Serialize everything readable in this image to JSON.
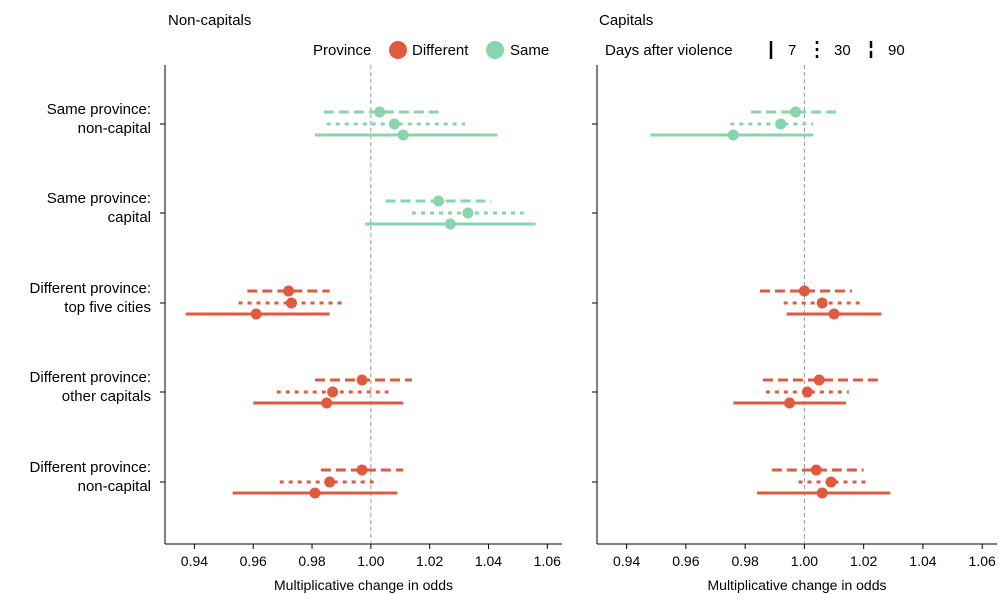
{
  "chart_data": {
    "type": "scatter",
    "subtype": "forest-plot",
    "xlabel": "Multiplicative change in odds",
    "xlim": [
      0.93,
      1.065
    ],
    "xticks": [
      "0.94",
      "0.96",
      "0.98",
      "1.00",
      "1.02",
      "1.04",
      "1.06"
    ],
    "reference_line": 1.0,
    "categories": [
      "Same province:\nnon-capital",
      "Same province:\ncapital",
      "Different province:\ntop five cities",
      "Different province:\nother capitals",
      "Different province:\nnon-capital"
    ],
    "legend_province": {
      "title": "Province",
      "items": [
        {
          "label": "Different",
          "color": "#E05A40"
        },
        {
          "label": "Same",
          "color": "#88D4AC"
        }
      ]
    },
    "legend_days": {
      "title": "Days after violence",
      "items": [
        {
          "label": "7",
          "linestyle": "solid"
        },
        {
          "label": "30",
          "linestyle": "dotted"
        },
        {
          "label": "90",
          "linestyle": "dashed"
        }
      ]
    },
    "panels": [
      {
        "title": "Non-capitals",
        "rows": [
          {
            "group": "Same",
            "estimates": [
              {
                "days": "90",
                "point": 1.003,
                "lo": 0.984,
                "hi": 1.023
              },
              {
                "days": "30",
                "point": 1.008,
                "lo": 0.985,
                "hi": 1.032
              },
              {
                "days": "7",
                "point": 1.011,
                "lo": 0.981,
                "hi": 1.043
              }
            ]
          },
          {
            "group": "Same",
            "estimates": [
              {
                "days": "90",
                "point": 1.023,
                "lo": 1.005,
                "hi": 1.041
              },
              {
                "days": "30",
                "point": 1.033,
                "lo": 1.014,
                "hi": 1.052
              },
              {
                "days": "7",
                "point": 1.027,
                "lo": 0.998,
                "hi": 1.056
              }
            ]
          },
          {
            "group": "Different",
            "estimates": [
              {
                "days": "90",
                "point": 0.972,
                "lo": 0.958,
                "hi": 0.986
              },
              {
                "days": "30",
                "point": 0.973,
                "lo": 0.955,
                "hi": 0.991
              },
              {
                "days": "7",
                "point": 0.961,
                "lo": 0.937,
                "hi": 0.986
              }
            ]
          },
          {
            "group": "Different",
            "estimates": [
              {
                "days": "90",
                "point": 0.997,
                "lo": 0.981,
                "hi": 1.014
              },
              {
                "days": "30",
                "point": 0.987,
                "lo": 0.968,
                "hi": 1.006
              },
              {
                "days": "7",
                "point": 0.985,
                "lo": 0.96,
                "hi": 1.011
              }
            ]
          },
          {
            "group": "Different",
            "estimates": [
              {
                "days": "90",
                "point": 0.997,
                "lo": 0.983,
                "hi": 1.011
              },
              {
                "days": "30",
                "point": 0.986,
                "lo": 0.969,
                "hi": 1.002
              },
              {
                "days": "7",
                "point": 0.981,
                "lo": 0.953,
                "hi": 1.009
              }
            ]
          }
        ]
      },
      {
        "title": "Capitals",
        "rows": [
          {
            "group": "Same",
            "estimates": [
              {
                "days": "90",
                "point": 0.997,
                "lo": 0.982,
                "hi": 1.012
              },
              {
                "days": "30",
                "point": 0.992,
                "lo": 0.975,
                "hi": 1.003
              },
              {
                "days": "7",
                "point": 0.976,
                "lo": 0.948,
                "hi": 1.003
              }
            ]
          },
          {
            "group": "Same",
            "estimates": []
          },
          {
            "group": "Different",
            "estimates": [
              {
                "days": "90",
                "point": 1.0,
                "lo": 0.985,
                "hi": 1.016
              },
              {
                "days": "30",
                "point": 1.006,
                "lo": 0.993,
                "hi": 1.02
              },
              {
                "days": "7",
                "point": 1.01,
                "lo": 0.994,
                "hi": 1.026
              }
            ]
          },
          {
            "group": "Different",
            "estimates": [
              {
                "days": "90",
                "point": 1.005,
                "lo": 0.986,
                "hi": 1.025
              },
              {
                "days": "30",
                "point": 1.001,
                "lo": 0.987,
                "hi": 1.015
              },
              {
                "days": "7",
                "point": 0.995,
                "lo": 0.976,
                "hi": 1.014
              }
            ]
          },
          {
            "group": "Different",
            "estimates": [
              {
                "days": "90",
                "point": 1.004,
                "lo": 0.989,
                "hi": 1.02
              },
              {
                "days": "30",
                "point": 1.009,
                "lo": 0.998,
                "hi": 1.021
              },
              {
                "days": "7",
                "point": 1.006,
                "lo": 0.984,
                "hi": 1.029
              }
            ]
          }
        ]
      }
    ]
  }
}
